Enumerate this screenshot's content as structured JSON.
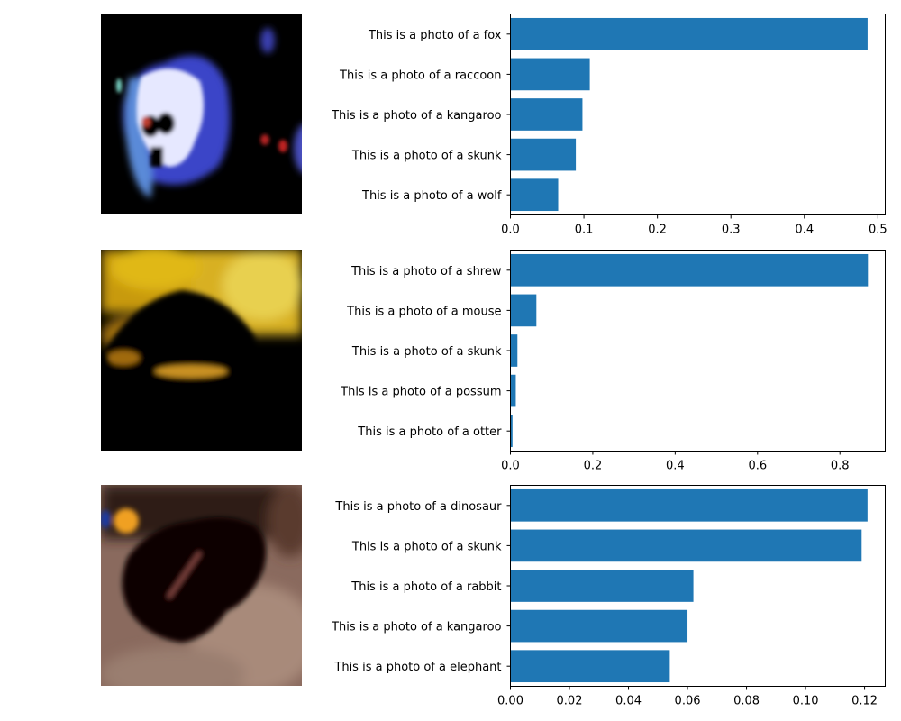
{
  "chart_data": [
    {
      "type": "bar",
      "orientation": "horizontal",
      "categories": [
        "This is a photo of a fox",
        "This is a photo of a raccoon",
        "This is a photo of a kangaroo",
        "This is a photo of a skunk",
        "This is a photo of a wolf"
      ],
      "values": [
        0.486,
        0.108,
        0.098,
        0.089,
        0.065
      ],
      "xlim": [
        0,
        0.51
      ],
      "xticks": [
        0.0,
        0.1,
        0.2,
        0.3,
        0.4,
        0.5
      ],
      "xtick_labels": [
        "0.0",
        "0.1",
        "0.2",
        "0.3",
        "0.4",
        "0.5"
      ],
      "bar_color": "#1f77b4",
      "grid": false
    },
    {
      "type": "bar",
      "orientation": "horizontal",
      "categories": [
        "This is a photo of a shrew",
        "This is a photo of a mouse",
        "This is a photo of a skunk",
        "This is a photo of a possum",
        "This is a photo of a otter"
      ],
      "values": [
        0.868,
        0.063,
        0.017,
        0.013,
        0.005
      ],
      "xlim": [
        0,
        0.91
      ],
      "xticks": [
        0.0,
        0.2,
        0.4,
        0.6,
        0.8
      ],
      "xtick_labels": [
        "0.0",
        "0.2",
        "0.4",
        "0.6",
        "0.8"
      ],
      "bar_color": "#1f77b4",
      "grid": false
    },
    {
      "type": "bar",
      "orientation": "horizontal",
      "categories": [
        "This is a photo of a dinosaur",
        "This is a photo of a skunk",
        "This is a photo of a rabbit",
        "This is a photo of a kangaroo",
        "This is a photo of a elephant"
      ],
      "values": [
        0.121,
        0.119,
        0.062,
        0.06,
        0.054
      ],
      "xlim": [
        0,
        0.127
      ],
      "xticks": [
        0.0,
        0.02,
        0.04,
        0.06,
        0.08,
        0.1,
        0.12
      ],
      "xtick_labels": [
        "0.00",
        "0.02",
        "0.04",
        "0.06",
        "0.08",
        "0.10",
        "0.12"
      ],
      "bar_color": "#1f77b4",
      "grid": false
    }
  ]
}
